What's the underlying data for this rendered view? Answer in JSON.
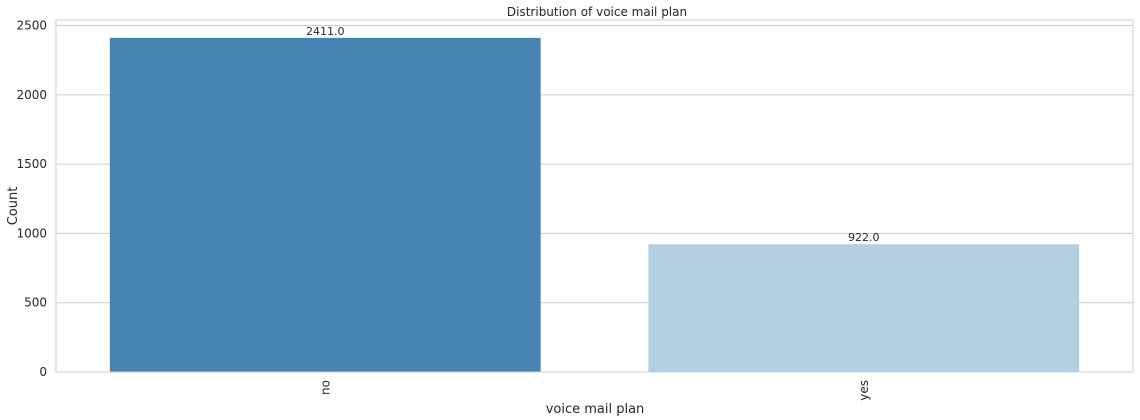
{
  "chart_data": {
    "type": "bar",
    "title": "Distribution of voice mail plan",
    "xlabel": "voice mail plan",
    "ylabel": "Count",
    "categories": [
      "no",
      "yes"
    ],
    "values": [
      2411,
      922
    ],
    "data_labels": [
      "2411.0",
      "922.0"
    ],
    "colors": [
      "#4884b1",
      "#b3cfe0"
    ],
    "ylim": [
      0,
      2540
    ],
    "yticks": [
      0,
      500,
      1000,
      1500,
      2000,
      2500
    ],
    "grid": "horizontal",
    "frame_color": "#cccccc",
    "grid_color": "#cccccc"
  }
}
